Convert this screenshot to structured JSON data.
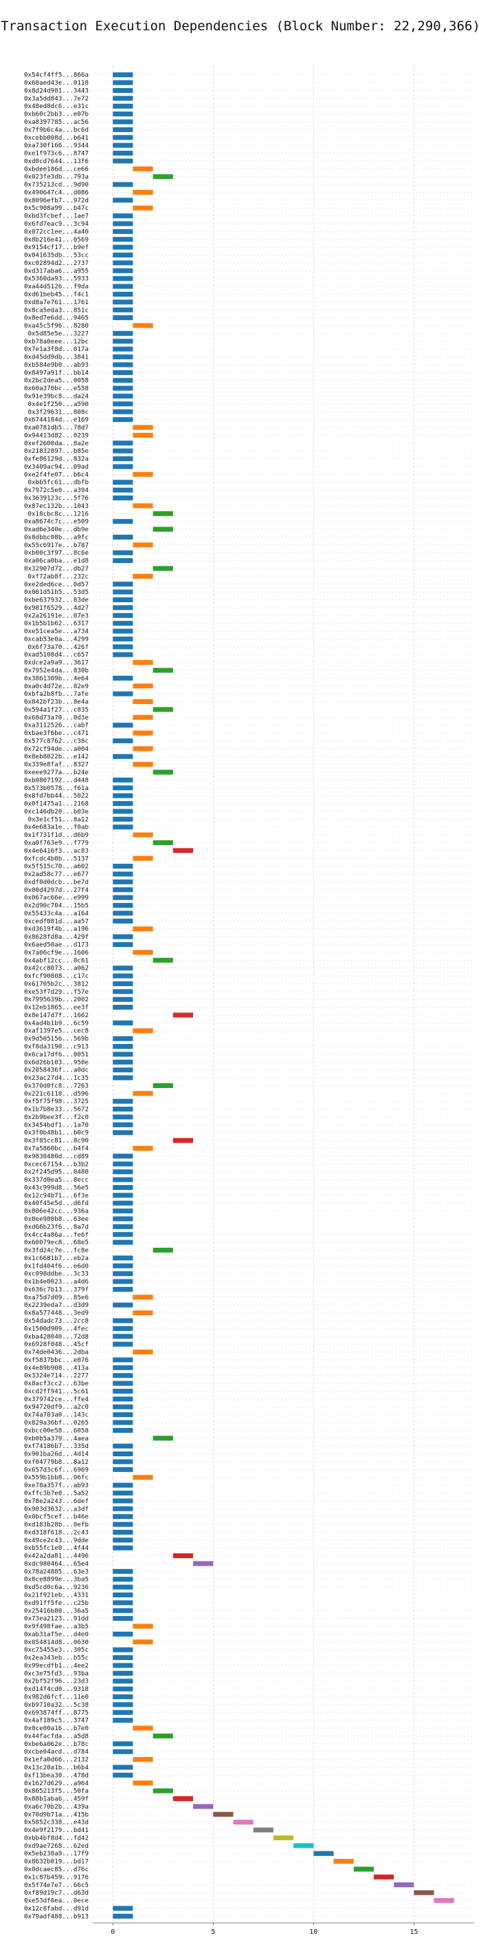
{
  "chart_data": {
    "type": "bar",
    "orientation": "horizontal-gantt",
    "title": "Transaction Execution Dependencies (Block Number: 22,290,366)",
    "xlabel": "",
    "ylabel": "",
    "xlim": [
      -1,
      18
    ],
    "xticks": [
      0,
      5,
      10,
      15
    ],
    "grid": true,
    "bar_width": 1,
    "palette": [
      "#1f77b4",
      "#ff7f0e",
      "#2ca02c",
      "#d62728",
      "#9467bd",
      "#8c564b",
      "#e377c2",
      "#7f7f7f",
      "#bcbd22",
      "#17becf"
    ],
    "transactions": [
      {
        "tx": "0x54cf4ff5...866a",
        "start": 0
      },
      {
        "tx": "0x60aed43e...0118",
        "start": 0
      },
      {
        "tx": "0x8d24d981...3443",
        "start": 0
      },
      {
        "tx": "0x3a5dd843...7e72",
        "start": 0
      },
      {
        "tx": "0x48ed8dc6...e31c",
        "start": 0
      },
      {
        "tx": "0xb60c2bb3...e07b",
        "start": 0
      },
      {
        "tx": "0xa8397785...ac56",
        "start": 0
      },
      {
        "tx": "0x7f9b6c4a...bc6d",
        "start": 0
      },
      {
        "tx": "0xcebb008d...b641",
        "start": 0
      },
      {
        "tx": "0xa730f166...9344",
        "start": 0
      },
      {
        "tx": "0xe1f973c6...8747",
        "start": 0
      },
      {
        "tx": "0xd0cd7644...13f6",
        "start": 0
      },
      {
        "tx": "0xbdee186d...ce66",
        "start": 1
      },
      {
        "tx": "0x023fe3db...793a",
        "start": 2
      },
      {
        "tx": "0x735213cd...9d90",
        "start": 0
      },
      {
        "tx": "0x490647c4...d086",
        "start": 1
      },
      {
        "tx": "0x8096efb7...972d",
        "start": 0
      },
      {
        "tx": "0x5c908a99...b47c",
        "start": 1
      },
      {
        "tx": "0xbd3fcbef...1ae7",
        "start": 0
      },
      {
        "tx": "0x6fd7eac9...3c94",
        "start": 0
      },
      {
        "tx": "0x072cc1ee...4a40",
        "start": 0
      },
      {
        "tx": "0x8b216e41...0569",
        "start": 0
      },
      {
        "tx": "0x9154cf17...b9ef",
        "start": 0
      },
      {
        "tx": "0x041635db...53cc",
        "start": 0
      },
      {
        "tx": "0xc02894d2...2737",
        "start": 0
      },
      {
        "tx": "0xd317aba6...a955",
        "start": 0
      },
      {
        "tx": "0x5360da93...5933",
        "start": 0
      },
      {
        "tx": "0xa44d5126...f9da",
        "start": 0
      },
      {
        "tx": "0xd61beb45...f4c1",
        "start": 0
      },
      {
        "tx": "0xd8a7e761...1761",
        "start": 0
      },
      {
        "tx": "0x8ca5eda3...851c",
        "start": 0
      },
      {
        "tx": "0x8ed7e6dd...9465",
        "start": 0
      },
      {
        "tx": "0xa45c5f96...8280",
        "start": 1
      },
      {
        "tx": "0x5d85e5e...3227",
        "start": 0
      },
      {
        "tx": "0xb78a0eee...12bc",
        "start": 0
      },
      {
        "tx": "0x7e1a3f8d...017a",
        "start": 0
      },
      {
        "tx": "0xd45dd9db...3841",
        "start": 0
      },
      {
        "tx": "0xb584e9b0...ab93",
        "start": 0
      },
      {
        "tx": "0x8497a91f...bb14",
        "start": 0
      },
      {
        "tx": "0x2bc2dea5...0058",
        "start": 0
      },
      {
        "tx": "0x60a370bc...e558",
        "start": 0
      },
      {
        "tx": "0x91e39bc8...da24",
        "start": 0
      },
      {
        "tx": "0x4e1f250...a590",
        "start": 0
      },
      {
        "tx": "0x3f29631...808c",
        "start": 0
      },
      {
        "tx": "0x6744184d...e169",
        "start": 0
      },
      {
        "tx": "0xa0781db5...78d7",
        "start": 1
      },
      {
        "tx": "0x94413d82...0239",
        "start": 1
      },
      {
        "tx": "0xef2600da...8a2e",
        "start": 0
      },
      {
        "tx": "0x21832897...b85e",
        "start": 0
      },
      {
        "tx": "0xfe86129d...832a",
        "start": 0
      },
      {
        "tx": "0x3409ac94...09ad",
        "start": 0
      },
      {
        "tx": "0xe2f4fe07...b6c4",
        "start": 1
      },
      {
        "tx": "0xbb5fc61...dbfb",
        "start": 0
      },
      {
        "tx": "0x7972c5e0...a394",
        "start": 0
      },
      {
        "tx": "0x3639123c...5f76",
        "start": 0
      },
      {
        "tx": "0x87ec132b...1043",
        "start": 1
      },
      {
        "tx": "0x18cbc8c...1216",
        "start": 2
      },
      {
        "tx": "0xa8674c7c...e509",
        "start": 0
      },
      {
        "tx": "0xad6e340e...db9e",
        "start": 2
      },
      {
        "tx": "0x8dbbc08b...a9fc",
        "start": 0
      },
      {
        "tx": "0x55c6917e...b787",
        "start": 1
      },
      {
        "tx": "0xb00c3f97...8c6e",
        "start": 0
      },
      {
        "tx": "0xa06ca0ba...e1d8",
        "start": 0
      },
      {
        "tx": "0x32907d72...db27",
        "start": 2
      },
      {
        "tx": "0xf72ab8f...232c",
        "start": 1
      },
      {
        "tx": "0xe2ded6ce...0d57",
        "start": 0
      },
      {
        "tx": "0x001d51b5...53d5",
        "start": 0
      },
      {
        "tx": "0xbe637932...83de",
        "start": 0
      },
      {
        "tx": "0x981f6529...4d27",
        "start": 0
      },
      {
        "tx": "0x2a26191e...07e3",
        "start": 0
      },
      {
        "tx": "0x1b5b1b62...6317",
        "start": 0
      },
      {
        "tx": "0xe51cea5e...a734",
        "start": 0
      },
      {
        "tx": "0xcab53e0a...4299",
        "start": 0
      },
      {
        "tx": "0x6f73a70...426f",
        "start": 0
      },
      {
        "tx": "0xad5108d4...c657",
        "start": 0
      },
      {
        "tx": "0xdce2a9a9...3617",
        "start": 1
      },
      {
        "tx": "0x7952e4da...830b",
        "start": 2
      },
      {
        "tx": "0x3861309b...4e64",
        "start": 0
      },
      {
        "tx": "0xa0c4d72e...82e9",
        "start": 1
      },
      {
        "tx": "0xbfa2b8fb...7afe",
        "start": 0
      },
      {
        "tx": "0x842bf23b...8e4a",
        "start": 1
      },
      {
        "tx": "0x594a1f27...c835",
        "start": 2
      },
      {
        "tx": "0x68d73a70...0d3e",
        "start": 1
      },
      {
        "tx": "0xa3112526...cabf",
        "start": 0
      },
      {
        "tx": "0xbae3f6be...c471",
        "start": 1
      },
      {
        "tx": "0x577c8762...c38c",
        "start": 0
      },
      {
        "tx": "0x72cf94de...a004",
        "start": 1
      },
      {
        "tx": "0x8eb8022b...e142",
        "start": 0
      },
      {
        "tx": "0x339e8faf...8327",
        "start": 1
      },
      {
        "tx": "0xeee9277a...b24e",
        "start": 2
      },
      {
        "tx": "0xb0807192...d448",
        "start": 0
      },
      {
        "tx": "0x573b0578...f61a",
        "start": 0
      },
      {
        "tx": "0x8fd7bb44...5022",
        "start": 0
      },
      {
        "tx": "0x0f1475a1...2168",
        "start": 0
      },
      {
        "tx": "0xc146db20...b03e",
        "start": 0
      },
      {
        "tx": "0x3e1cf51...8a12",
        "start": 0
      },
      {
        "tx": "0x4e683a1e...f0ab",
        "start": 0
      },
      {
        "tx": "0x1f731f1d...d6b9",
        "start": 1
      },
      {
        "tx": "0xa0f763e9...f779",
        "start": 2
      },
      {
        "tx": "0x4e6416f3...ac83",
        "start": 3
      },
      {
        "tx": "0xfcdc4b0b...5137",
        "start": 1
      },
      {
        "tx": "0x5f515c70...a602",
        "start": 0
      },
      {
        "tx": "0x2ad58c77...e677",
        "start": 0
      },
      {
        "tx": "0xdf0d0dcb...be7d",
        "start": 0
      },
      {
        "tx": "0x00d4297d...27f4",
        "start": 0
      },
      {
        "tx": "0x067ac66e...e999",
        "start": 0
      },
      {
        "tx": "0x2d90c704...15b5",
        "start": 0
      },
      {
        "tx": "0x55433c4a...a164",
        "start": 0
      },
      {
        "tx": "0xcedf081d...aa57",
        "start": 0
      },
      {
        "tx": "0xd3619f4b...a196",
        "start": 1
      },
      {
        "tx": "0x8628fd8a...429f",
        "start": 0
      },
      {
        "tx": "0x6aed50ae...d173",
        "start": 0
      },
      {
        "tx": "0x7a06cf9e...1606",
        "start": 1
      },
      {
        "tx": "0x4abf12cc...0c61",
        "start": 2
      },
      {
        "tx": "0x42cc8073...a062",
        "start": 0
      },
      {
        "tx": "0xfcf90808...c17c",
        "start": 0
      },
      {
        "tx": "0x61705b2c...3812",
        "start": 0
      },
      {
        "tx": "0xe53f7d29...f57e",
        "start": 0
      },
      {
        "tx": "0x7995639b...2002",
        "start": 0
      },
      {
        "tx": "0x12eb1865...ee3f",
        "start": 0
      },
      {
        "tx": "0x8e147d7f...1662",
        "start": 3
      },
      {
        "tx": "0x4ad4b1b9...6c59",
        "start": 0
      },
      {
        "tx": "0xaf1397e5...cec8",
        "start": 1
      },
      {
        "tx": "0x9d505156...569b",
        "start": 0
      },
      {
        "tx": "0xf8da3190...c913",
        "start": 0
      },
      {
        "tx": "0x6ca17df6...0051",
        "start": 0
      },
      {
        "tx": "0x6d26b103...950e",
        "start": 0
      },
      {
        "tx": "0x2058436f...a0dc",
        "start": 0
      },
      {
        "tx": "0x23ac27d4...1c35",
        "start": 0
      },
      {
        "tx": "0x370d0fc8...7263",
        "start": 2
      },
      {
        "tx": "0x221c6118...d596",
        "start": 1
      },
      {
        "tx": "0xf5f75f98...3725",
        "start": 0
      },
      {
        "tx": "0x1b7b8e33...5672",
        "start": 0
      },
      {
        "tx": "0x2b9bee3f...f2c0",
        "start": 0
      },
      {
        "tx": "0x3454bdf1...1a70",
        "start": 0
      },
      {
        "tx": "0x3f0b48b1...b0c9",
        "start": 0
      },
      {
        "tx": "0x3f85cc81...8c90",
        "start": 3
      },
      {
        "tx": "0x7a5860bc...b4f4",
        "start": 1
      },
      {
        "tx": "0x9830480d...cd89",
        "start": 0
      },
      {
        "tx": "0xcec67154...b3b2",
        "start": 0
      },
      {
        "tx": "0x2f245d95...0480",
        "start": 0
      },
      {
        "tx": "0x337d0ea5...8ecc",
        "start": 0
      },
      {
        "tx": "0x43c999d8...56e5",
        "start": 0
      },
      {
        "tx": "0x12c94b71...6f3e",
        "start": 0
      },
      {
        "tx": "0x40f45e5d...d6fd",
        "start": 0
      },
      {
        "tx": "0x806e42cc...936a",
        "start": 0
      },
      {
        "tx": "0x8ee980b8...63ee",
        "start": 0
      },
      {
        "tx": "0xd66b23f6...8a7d",
        "start": 0
      },
      {
        "tx": "0x4cc4a86a...fe6f",
        "start": 0
      },
      {
        "tx": "0x60079ec8...68e5",
        "start": 0
      },
      {
        "tx": "0x3fd24c7e...fc8e",
        "start": 2
      },
      {
        "tx": "0x1c6681b7...eb2a",
        "start": 0
      },
      {
        "tx": "0x1fd404f6...e6d0",
        "start": 0
      },
      {
        "tx": "0xc098ddbe...3c33",
        "start": 0
      },
      {
        "tx": "0x1b4e0023...a4d6",
        "start": 0
      },
      {
        "tx": "0x636c7b13...379f",
        "start": 0
      },
      {
        "tx": "0xa75d7d09...85e6",
        "start": 1
      },
      {
        "tx": "0x2239eda7...d3d9",
        "start": 0
      },
      {
        "tx": "0x8a577448...3ed9",
        "start": 1
      },
      {
        "tx": "0x54dadc73...2cc8",
        "start": 0
      },
      {
        "tx": "0x1500d909...4fec",
        "start": 0
      },
      {
        "tx": "0xba428040...72d8",
        "start": 0
      },
      {
        "tx": "0x6928f048...45cf",
        "start": 0
      },
      {
        "tx": "0x74de0436...2dba",
        "start": 1
      },
      {
        "tx": "0xf5837bbc...e076",
        "start": 0
      },
      {
        "tx": "0x4e89b908...413a",
        "start": 0
      },
      {
        "tx": "0x3324e714...2277",
        "start": 0
      },
      {
        "tx": "0x8acf3cc2...63be",
        "start": 0
      },
      {
        "tx": "0xcd2ff941...5c61",
        "start": 0
      },
      {
        "tx": "0x379742ce...ffe4",
        "start": 0
      },
      {
        "tx": "0x94720df9...a2c0",
        "start": 0
      },
      {
        "tx": "0x74a703a0...143c",
        "start": 0
      },
      {
        "tx": "0x829a36bf...0265",
        "start": 0
      },
      {
        "tx": "0xbcc00e58...6058",
        "start": 0
      },
      {
        "tx": "0xb0b5a379...4aea",
        "start": 2
      },
      {
        "tx": "0xf74186b7...335d",
        "start": 0
      },
      {
        "tx": "0x901ba26d...4d14",
        "start": 0
      },
      {
        "tx": "0xf04779b8...8a12",
        "start": 0
      },
      {
        "tx": "0x657d3c6f...6969",
        "start": 0
      },
      {
        "tx": "0x559b1bb8...06fc",
        "start": 1
      },
      {
        "tx": "0xe78a357f...ab93",
        "start": 0
      },
      {
        "tx": "0xffc3b7e0...5a52",
        "start": 0
      },
      {
        "tx": "0x78e2a243...6def",
        "start": 0
      },
      {
        "tx": "0x903d3632...a3df",
        "start": 0
      },
      {
        "tx": "0x0bcf5cef...b46e",
        "start": 0
      },
      {
        "tx": "0xd183b28b...0efb",
        "start": 0
      },
      {
        "tx": "0xd318f618...2c43",
        "start": 0
      },
      {
        "tx": "0x49ce2c43...9dde",
        "start": 0
      },
      {
        "tx": "0xb55fc1e0...4f44",
        "start": 0
      },
      {
        "tx": "0x42a2da81...4496",
        "start": 3
      },
      {
        "tx": "0xdc980464...65e4",
        "start": 4
      },
      {
        "tx": "0x78a24885...63e3",
        "start": 0
      },
      {
        "tx": "0x8ce8899e...3ba5",
        "start": 0
      },
      {
        "tx": "0xd5cd0c6a...9236",
        "start": 0
      },
      {
        "tx": "0x21f921eb...4331",
        "start": 0
      },
      {
        "tx": "0xd91ff5fe...c25b",
        "start": 0
      },
      {
        "tx": "0x25416b80...36a5",
        "start": 0
      },
      {
        "tx": "0x73ea2123...91dd",
        "start": 0
      },
      {
        "tx": "0x9f498fae...a3b5",
        "start": 1
      },
      {
        "tx": "0xab31af5e...d4e0",
        "start": 0
      },
      {
        "tx": "0x054814d8...0630",
        "start": 1
      },
      {
        "tx": "0xc75455e3...305c",
        "start": 0
      },
      {
        "tx": "0x2ea343eb...b55c",
        "start": 0
      },
      {
        "tx": "0x99ecdfb1...4ee2",
        "start": 0
      },
      {
        "tx": "0xc3e75fd3...93ba",
        "start": 0
      },
      {
        "tx": "0x2bf52f96...23d3",
        "start": 0
      },
      {
        "tx": "0xd14f4cd0...9318",
        "start": 0
      },
      {
        "tx": "0x982d6fcf...11e0",
        "start": 0
      },
      {
        "tx": "0xb9710a32...5c38",
        "start": 0
      },
      {
        "tx": "0x693874ff...8775",
        "start": 0
      },
      {
        "tx": "0x4af189c5...3747",
        "start": 0
      },
      {
        "tx": "0x0ce00a16...b7e0",
        "start": 1
      },
      {
        "tx": "0x44facfda...a5d8",
        "start": 2
      },
      {
        "tx": "0xbe6a062e...b78c",
        "start": 0
      },
      {
        "tx": "0xcbe04acd...d784",
        "start": 0
      },
      {
        "tx": "0x1efa0d66...2132",
        "start": 1
      },
      {
        "tx": "0x13c20a1b...b6b4",
        "start": 0
      },
      {
        "tx": "0xf13bea30...478d",
        "start": 0
      },
      {
        "tx": "0x1627d629...a964",
        "start": 1
      },
      {
        "tx": "0x865213f5...50fa",
        "start": 2
      },
      {
        "tx": "0x88b1aba6...459f",
        "start": 3
      },
      {
        "tx": "0xa6c70b2b...439a",
        "start": 4
      },
      {
        "tx": "0x70d9b71a...415b",
        "start": 5
      },
      {
        "tx": "0x5852c338...e43d",
        "start": 6
      },
      {
        "tx": "0x4e9f2179...bd41",
        "start": 7
      },
      {
        "tx": "0xbb4bf8d4...fd42",
        "start": 8
      },
      {
        "tx": "0xd9ae7268...62ed",
        "start": 9
      },
      {
        "tx": "0x5eb238a9...17f9",
        "start": 10
      },
      {
        "tx": "0x8632b019...bd17",
        "start": 11
      },
      {
        "tx": "0x0dcaec85...d76c",
        "start": 12
      },
      {
        "tx": "0x1c87b459...9176",
        "start": 13
      },
      {
        "tx": "0x5f74e7e7...66c5",
        "start": 14
      },
      {
        "tx": "0xf89d19c7...d63d",
        "start": 15
      },
      {
        "tx": "0xe53df0ea...0ece",
        "start": 16
      },
      {
        "tx": "0x12c8fabd...d91d",
        "start": 0
      },
      {
        "tx": "0x79adf488...b913",
        "start": 0
      }
    ]
  }
}
